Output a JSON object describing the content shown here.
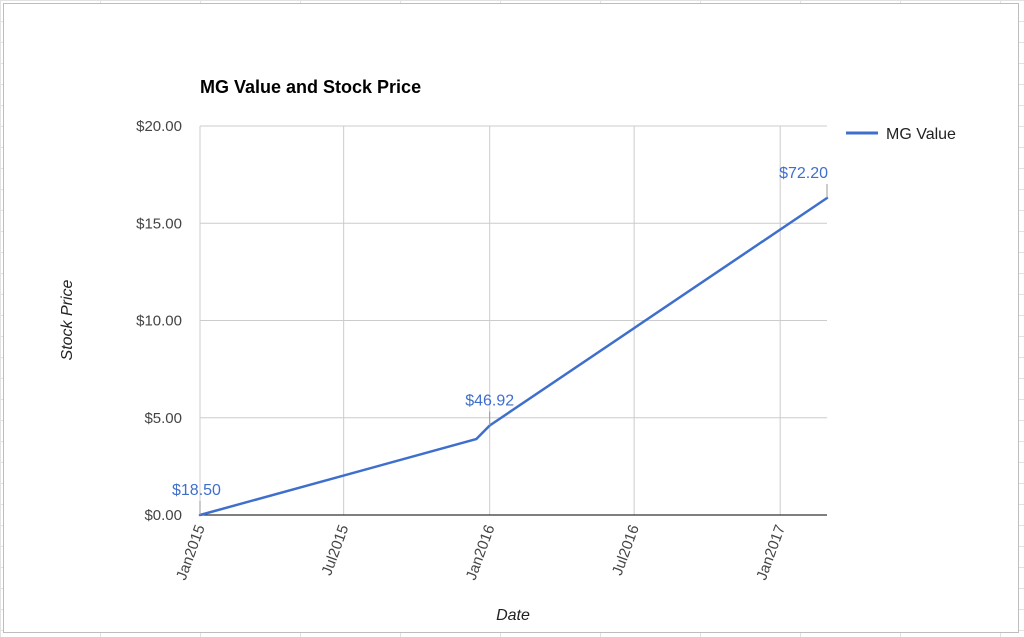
{
  "chart_data": {
    "type": "line",
    "title": "MG Value and Stock Price",
    "xlabel": "Date",
    "ylabel": "Stock Price",
    "x_ticks": [
      "Jan2015",
      "Jul2015",
      "Jan2016",
      "Jul2016",
      "Jan2017"
    ],
    "x_tick_dates": [
      "2015-01-01",
      "2015-07-01",
      "2016-01-01",
      "2016-07-01",
      "2017-01-01"
    ],
    "xlim": [
      "2015-01-01",
      "2017-03-01"
    ],
    "y_ticks": [
      "$0.00",
      "$5.00",
      "$10.00",
      "$15.00",
      "$20.00"
    ],
    "y_tick_values": [
      0,
      5,
      10,
      15,
      20
    ],
    "ylim": [
      0,
      20
    ],
    "grid": true,
    "legend_position": "right",
    "series": [
      {
        "name": "MG Value",
        "color": "#3f6fcd",
        "points": [
          {
            "x": "2015-01-01",
            "y": 0.0
          },
          {
            "x": "2015-12-15",
            "y": 3.9
          },
          {
            "x": "2016-01-01",
            "y": 4.6
          },
          {
            "x": "2017-03-01",
            "y": 16.3
          }
        ]
      }
    ],
    "annotations": [
      {
        "x": "2015-01-01",
        "text": "$18.50"
      },
      {
        "x": "2016-01-01",
        "text": "$46.92"
      },
      {
        "x": "2017-03-01",
        "text": "$72.20"
      }
    ]
  }
}
